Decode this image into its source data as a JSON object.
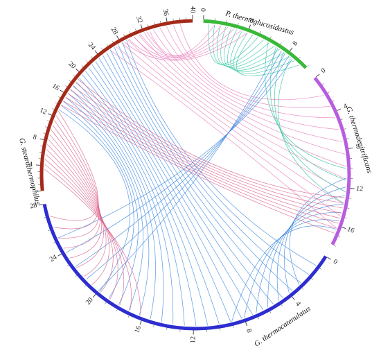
{
  "segments": [
    {
      "id": "pt",
      "name": "P. thermoglucosidastus",
      "length": 10,
      "ticks": [
        0,
        4,
        8
      ],
      "color": "#3ab83a"
    },
    {
      "id": "gd",
      "name": "G. thermodenitrificans",
      "length": 18,
      "ticks": [
        0,
        4,
        8,
        12,
        16
      ],
      "color": "#b85ce0"
    },
    {
      "id": "gc",
      "name": "G. thermocatenulatus",
      "length": 28,
      "ticks": [
        0,
        4,
        8,
        12,
        16,
        20,
        24,
        28
      ],
      "color": "#2d2dd0"
    },
    {
      "id": "gs",
      "name": "G. stearothermophilus",
      "length": 40,
      "ticks": [
        4,
        8,
        12,
        16,
        20,
        24,
        28,
        32,
        36,
        40
      ],
      "color": "#a52a1a"
    }
  ],
  "link_colors": {
    "pink": "#e87ab8",
    "blue": "#3a86e0",
    "teal": "#2ec4a0",
    "rose": "#d9608a"
  }
}
